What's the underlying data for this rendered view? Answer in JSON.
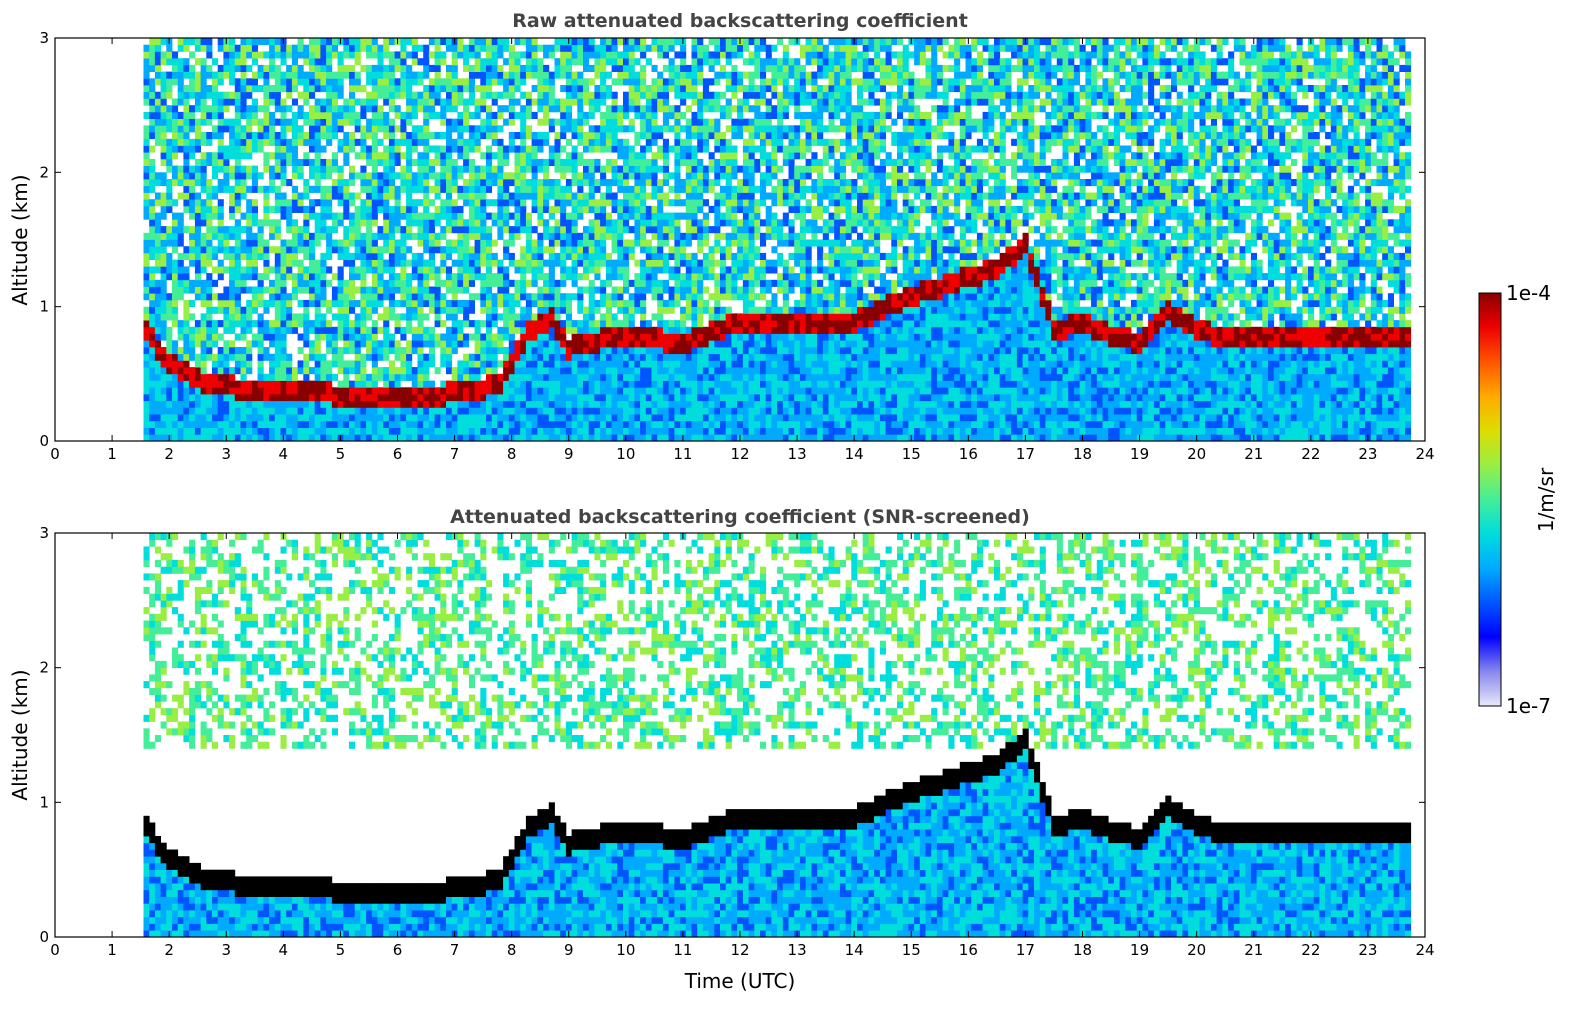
{
  "chart_data": [
    {
      "type": "heatmap",
      "title": "Raw attenuated backscattering coefficient",
      "xlabel": "",
      "ylabel": "Altitude (km)",
      "xlim": [
        0,
        24
      ],
      "ylim": [
        0,
        3
      ],
      "x_ticks": [
        "0",
        "1",
        "2",
        "3",
        "4",
        "5",
        "6",
        "7",
        "8",
        "9",
        "10",
        "11",
        "12",
        "13",
        "14",
        "15",
        "16",
        "17",
        "18",
        "19",
        "20",
        "21",
        "22",
        "23",
        "24"
      ],
      "y_ticks": [
        "0",
        "1",
        "2",
        "3"
      ],
      "data_start_hour": 1.55,
      "data_end_hour": 23.75,
      "layer_top_km": [
        [
          1.6,
          0.85
        ],
        [
          2.0,
          0.6
        ],
        [
          2.5,
          0.48
        ],
        [
          3.0,
          0.43
        ],
        [
          4.0,
          0.4
        ],
        [
          5.0,
          0.37
        ],
        [
          6.0,
          0.35
        ],
        [
          7.0,
          0.38
        ],
        [
          7.8,
          0.45
        ],
        [
          8.3,
          0.85
        ],
        [
          8.7,
          0.95
        ],
        [
          9.0,
          0.72
        ],
        [
          10.0,
          0.82
        ],
        [
          11.0,
          0.75
        ],
        [
          12.0,
          0.92
        ],
        [
          13.0,
          0.88
        ],
        [
          14.0,
          0.92
        ],
        [
          15.0,
          1.1
        ],
        [
          16.0,
          1.25
        ],
        [
          16.5,
          1.3
        ],
        [
          17.0,
          1.5
        ],
        [
          17.5,
          0.85
        ],
        [
          18.0,
          0.9
        ],
        [
          18.5,
          0.82
        ],
        [
          19.0,
          0.75
        ],
        [
          19.5,
          1.0
        ],
        [
          20.0,
          0.85
        ],
        [
          20.5,
          0.8
        ]
      ],
      "colorbar": {
        "min_label": "1e-7",
        "max_label": "1e-4",
        "unit": "1/m/sr"
      }
    },
    {
      "type": "heatmap",
      "title": "Attenuated backscattering coefficient (SNR-screened)",
      "xlabel": "Time (UTC)",
      "ylabel": "Altitude (km)",
      "xlim": [
        0,
        24
      ],
      "ylim": [
        0,
        3
      ],
      "x_ticks": [
        "0",
        "1",
        "2",
        "3",
        "4",
        "5",
        "6",
        "7",
        "8",
        "9",
        "10",
        "11",
        "12",
        "13",
        "14",
        "15",
        "16",
        "17",
        "18",
        "19",
        "20",
        "21",
        "22",
        "23",
        "24"
      ],
      "y_ticks": [
        "0",
        "1",
        "2",
        "3"
      ],
      "data_start_hour": 1.55,
      "data_end_hour": 23.75,
      "colorbar": {
        "min_label": "1e-7",
        "max_label": "1e-4",
        "unit": "1/m/sr"
      }
    }
  ],
  "colorbar": {
    "max_label": "1e-4",
    "min_label": "1e-7",
    "unit_label": "1/m/sr",
    "colors": [
      "#e8e8f8",
      "#8888ee",
      "#0000ff",
      "#0055ff",
      "#00aaff",
      "#00dddd",
      "#44ee99",
      "#99ee44",
      "#dddd00",
      "#ffaa00",
      "#ff5500",
      "#ee0000",
      "#880000"
    ]
  }
}
